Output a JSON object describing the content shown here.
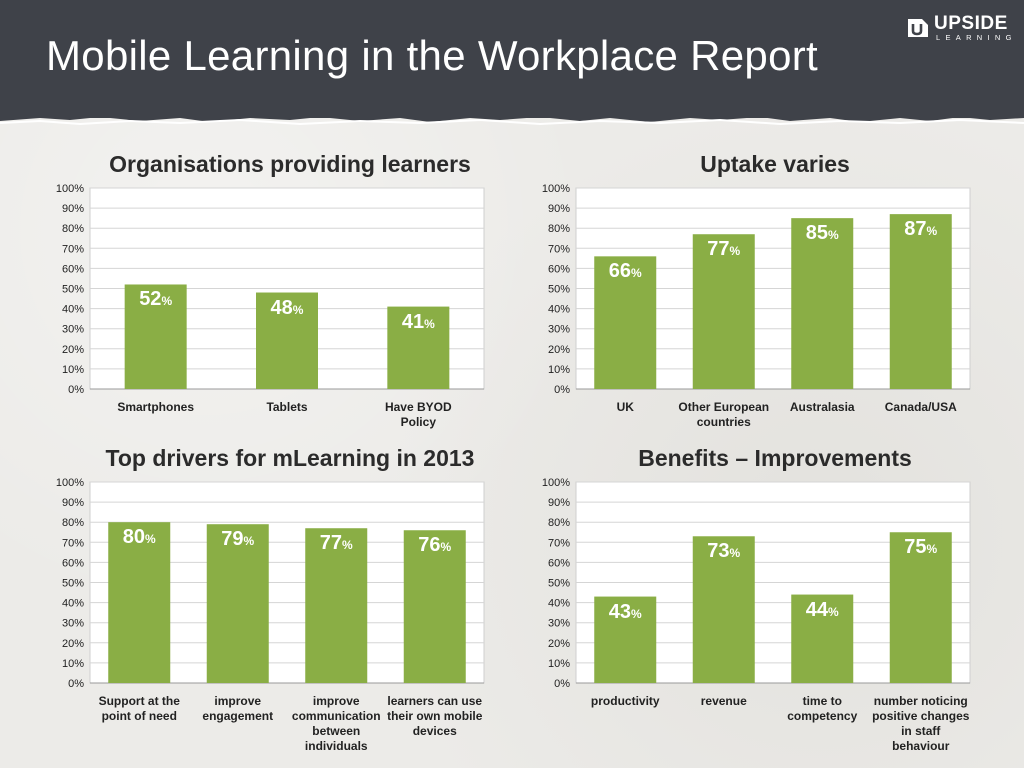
{
  "header": {
    "title": "Mobile Learning in the Workplace Report",
    "logo_word": "UPSIDE",
    "logo_sub": "LEARNING"
  },
  "colors": {
    "bar": "#8aae45",
    "header": "#3f4249",
    "grid": "#d5d5d5"
  },
  "chart_data": [
    {
      "type": "bar",
      "title": "Organisations providing learners",
      "categories": [
        "Smartphones",
        "Tablets",
        "Have BYOD Policy"
      ],
      "values": [
        52,
        48,
        41
      ],
      "value_labels": [
        "52",
        "48",
        "41"
      ],
      "ylim": [
        0,
        100
      ],
      "yticks": [
        "0%",
        "10%",
        "20%",
        "30%",
        "40%",
        "50%",
        "60%",
        "70%",
        "80%",
        "90%",
        "100%"
      ],
      "grid": true
    },
    {
      "type": "bar",
      "title": "Uptake varies",
      "categories": [
        "UK",
        "Other European countries",
        "Australasia",
        "Canada/USA"
      ],
      "values": [
        66,
        77,
        85,
        87
      ],
      "value_labels": [
        "66",
        "77",
        "85",
        "87"
      ],
      "ylim": [
        0,
        100
      ],
      "yticks": [
        "0%",
        "10%",
        "20%",
        "30%",
        "40%",
        "50%",
        "60%",
        "70%",
        "80%",
        "90%",
        "100%"
      ],
      "grid": true
    },
    {
      "type": "bar",
      "title": "Top drivers for mLearning in 2013",
      "categories": [
        "Support at the point of need",
        "improve engagement",
        "improve communication between individuals",
        "learners can use their own mobile devices"
      ],
      "values": [
        80,
        79,
        77,
        76
      ],
      "value_labels": [
        "80",
        "79",
        "77",
        "76"
      ],
      "ylim": [
        0,
        100
      ],
      "yticks": [
        "0%",
        "10%",
        "20%",
        "30%",
        "40%",
        "50%",
        "60%",
        "70%",
        "80%",
        "90%",
        "100%"
      ],
      "grid": true
    },
    {
      "type": "bar",
      "title": "Benefits – Improvements",
      "categories": [
        "productivity",
        "revenue",
        "time to competency",
        "number noticing positive changes in staff behaviour"
      ],
      "values": [
        43,
        73,
        44,
        75
      ],
      "value_labels": [
        "43",
        "73",
        "44",
        "75"
      ],
      "ylim": [
        0,
        100
      ],
      "yticks": [
        "0%",
        "10%",
        "20%",
        "30%",
        "40%",
        "50%",
        "60%",
        "70%",
        "80%",
        "90%",
        "100%"
      ],
      "grid": true
    }
  ],
  "percent_symbol": "%"
}
